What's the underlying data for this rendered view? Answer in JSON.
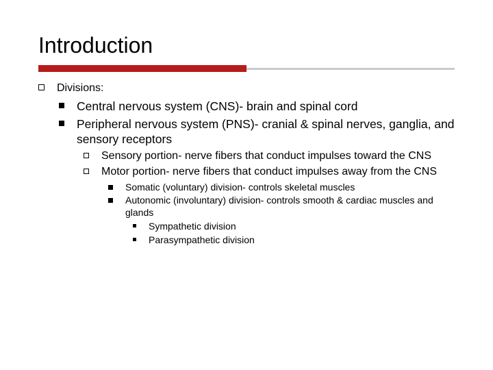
{
  "title": "Introduction",
  "accent_color": "#b71c1c",
  "rule_gray": "#c9c9c9",
  "lvl0": {
    "label": "Divisions:"
  },
  "lvl1": {
    "item0": "Central nervous system (CNS)- brain and spinal cord",
    "item1": "Peripheral nervous system (PNS)- cranial & spinal nerves, ganglia, and sensory receptors"
  },
  "lvl2": {
    "item0": "Sensory portion- nerve fibers that conduct impulses toward the CNS",
    "item1": "Motor portion- nerve fibers that conduct impulses away from the CNS"
  },
  "lvl3": {
    "item0": "Somatic (voluntary) division- controls skeletal muscles",
    "item1": "Autonomic (involuntary) division- controls smooth & cardiac muscles and glands"
  },
  "lvl4": {
    "item0": "Sympathetic division",
    "item1": "Parasympathetic division"
  }
}
